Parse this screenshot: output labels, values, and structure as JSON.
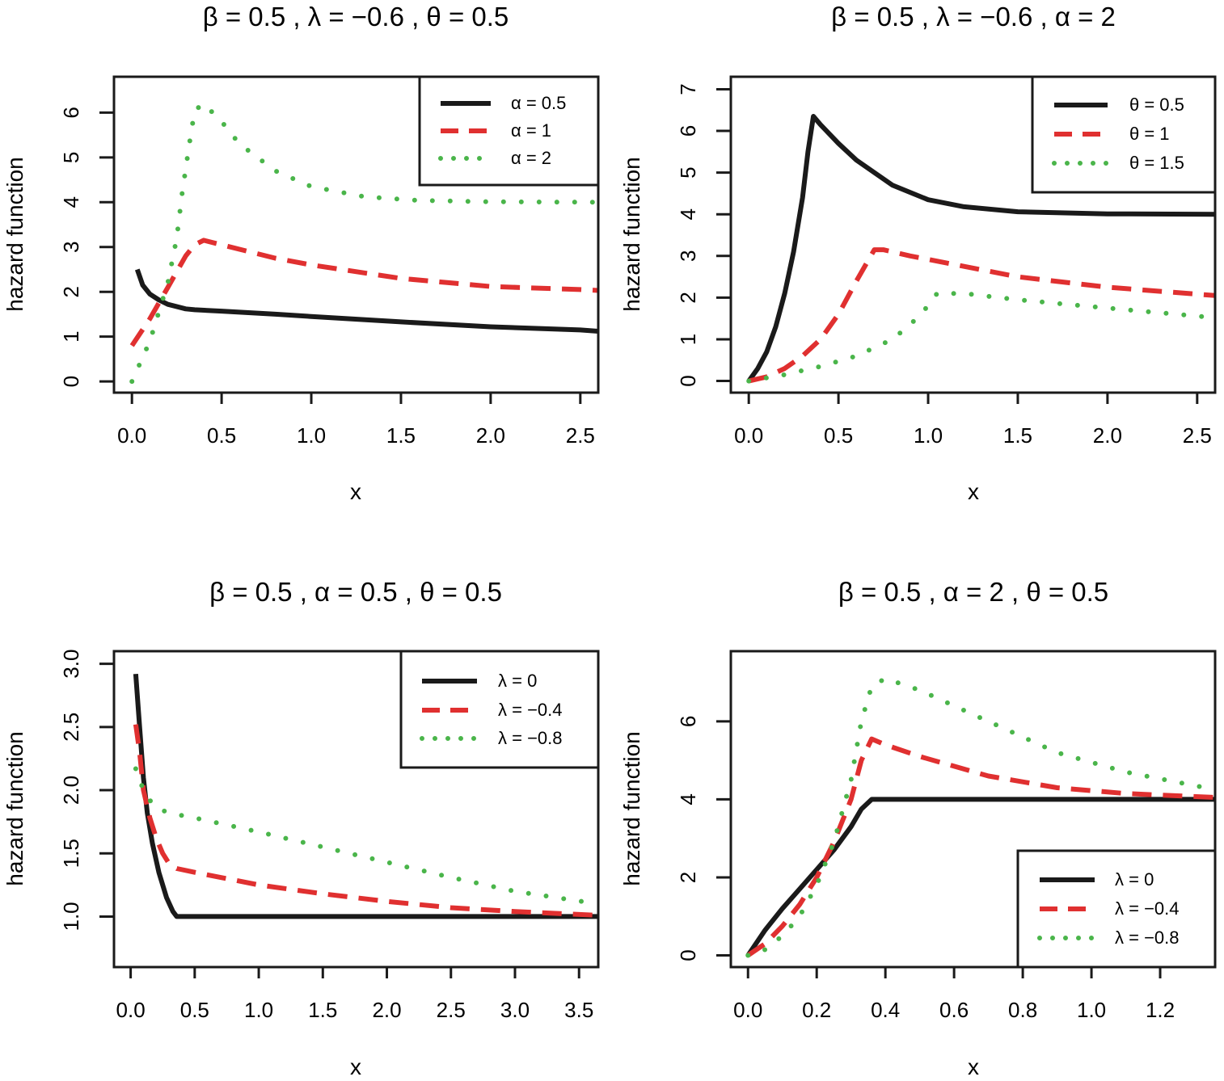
{
  "colors": {
    "black": "#1a1a1a",
    "red": "#e03030",
    "green": "#4ab54a"
  },
  "chart_data": [
    {
      "type": "line",
      "title": "β = 0.5 , λ = −0.6 , θ = 0.5",
      "xlabel": "x",
      "ylabel": "hazard function",
      "xlim": [
        -0.1,
        2.6
      ],
      "ylim": [
        -0.25,
        6.8
      ],
      "xticks": [
        0.0,
        0.5,
        1.0,
        1.5,
        2.0,
        2.5
      ],
      "xtick_labels": [
        "0.0",
        "0.5",
        "1.0",
        "1.5",
        "2.0",
        "2.5"
      ],
      "yticks": [
        0,
        1,
        2,
        3,
        4,
        5,
        6
      ],
      "ytick_labels": [
        "0",
        "1",
        "2",
        "3",
        "4",
        "5",
        "6"
      ],
      "legend_position": "top-right",
      "series": [
        {
          "name": "α = 0.5",
          "style": "solid",
          "color": "#1a1a1a",
          "x": [
            0.03,
            0.06,
            0.1,
            0.15,
            0.2,
            0.3,
            0.35,
            0.5,
            0.8,
            1.0,
            1.5,
            2.0,
            2.5,
            2.6
          ],
          "y": [
            2.5,
            2.15,
            1.95,
            1.82,
            1.72,
            1.62,
            1.6,
            1.57,
            1.5,
            1.45,
            1.33,
            1.22,
            1.15,
            1.12
          ]
        },
        {
          "name": "α = 1",
          "style": "dashed",
          "color": "#e03030",
          "x": [
            0.0,
            0.1,
            0.2,
            0.3,
            0.35,
            0.4,
            0.5,
            0.8,
            1.0,
            1.5,
            2.0,
            2.5,
            2.6
          ],
          "y": [
            0.8,
            1.4,
            2.1,
            2.8,
            3.05,
            3.15,
            3.05,
            2.75,
            2.6,
            2.3,
            2.12,
            2.05,
            2.03
          ]
        },
        {
          "name": "α = 2",
          "style": "dotted",
          "color": "#4ab54a",
          "x": [
            0.0,
            0.1,
            0.2,
            0.25,
            0.28,
            0.32,
            0.35,
            0.4,
            0.5,
            0.6,
            0.8,
            1.0,
            1.3,
            1.6,
            2.0,
            2.6
          ],
          "y": [
            0.0,
            0.9,
            2.2,
            3.2,
            4.2,
            5.3,
            6.05,
            6.2,
            5.8,
            5.3,
            4.7,
            4.35,
            4.12,
            4.04,
            4.01,
            4.0
          ]
        }
      ]
    },
    {
      "type": "line",
      "title": "β = 0.5 , λ = −0.6 , α = 2",
      "xlabel": "x",
      "ylabel": "hazard function",
      "xlim": [
        -0.1,
        2.6
      ],
      "ylim": [
        -0.28,
        7.3
      ],
      "xticks": [
        0.0,
        0.5,
        1.0,
        1.5,
        2.0,
        2.5
      ],
      "xtick_labels": [
        "0.0",
        "0.5",
        "1.0",
        "1.5",
        "2.0",
        "2.5"
      ],
      "yticks": [
        0,
        1,
        2,
        3,
        4,
        5,
        6,
        7
      ],
      "ytick_labels": [
        "0",
        "1",
        "2",
        "3",
        "4",
        "5",
        "6",
        "7"
      ],
      "legend_position": "top-right",
      "series": [
        {
          "name": "θ = 0.5",
          "style": "solid",
          "color": "#1a1a1a",
          "x": [
            0.0,
            0.05,
            0.1,
            0.15,
            0.2,
            0.25,
            0.3,
            0.33,
            0.36,
            0.4,
            0.5,
            0.6,
            0.8,
            1.0,
            1.2,
            1.5,
            2.0,
            2.6
          ],
          "y": [
            0.0,
            0.3,
            0.7,
            1.3,
            2.1,
            3.1,
            4.4,
            5.5,
            6.35,
            6.15,
            5.7,
            5.3,
            4.7,
            4.35,
            4.18,
            4.06,
            4.01,
            4.0
          ]
        },
        {
          "name": "θ = 1",
          "style": "dashed",
          "color": "#e03030",
          "x": [
            0.0,
            0.1,
            0.2,
            0.3,
            0.4,
            0.5,
            0.6,
            0.7,
            0.75,
            0.9,
            1.2,
            1.5,
            2.0,
            2.6
          ],
          "y": [
            0.0,
            0.1,
            0.3,
            0.6,
            1.0,
            1.6,
            2.4,
            3.15,
            3.15,
            3.0,
            2.75,
            2.5,
            2.25,
            2.05
          ]
        },
        {
          "name": "θ = 1.5",
          "style": "dotted",
          "color": "#4ab54a",
          "x": [
            0.0,
            0.2,
            0.4,
            0.6,
            0.8,
            0.9,
            1.0,
            1.05,
            1.2,
            1.5,
            2.0,
            2.6
          ],
          "y": [
            0.0,
            0.15,
            0.35,
            0.6,
            1.0,
            1.35,
            1.8,
            2.1,
            2.1,
            1.95,
            1.75,
            1.52
          ]
        }
      ]
    },
    {
      "type": "line",
      "title": "β = 0.5 , α = 0.5 , θ = 0.5",
      "xlabel": "x",
      "ylabel": "hazard function",
      "xlim": [
        -0.13,
        3.65
      ],
      "ylim": [
        0.6,
        3.1
      ],
      "xticks": [
        0.0,
        0.5,
        1.0,
        1.5,
        2.0,
        2.5,
        3.0,
        3.5
      ],
      "xtick_labels": [
        "0.0",
        "0.5",
        "1.0",
        "1.5",
        "2.0",
        "2.5",
        "3.0",
        "3.5"
      ],
      "yticks": [
        1.0,
        1.5,
        2.0,
        2.5,
        3.0
      ],
      "ytick_labels": [
        "1.0",
        "1.5",
        "2.0",
        "2.5",
        "3.0"
      ],
      "legend_position": "top-right",
      "series": [
        {
          "name": "λ = 0",
          "style": "solid",
          "color": "#1a1a1a",
          "x": [
            0.04,
            0.07,
            0.1,
            0.13,
            0.17,
            0.22,
            0.28,
            0.33,
            0.36,
            0.4,
            1.0,
            2.0,
            3.0,
            3.65
          ],
          "y": [
            2.92,
            2.5,
            2.1,
            1.82,
            1.58,
            1.35,
            1.15,
            1.04,
            1.0,
            1.0,
            1.0,
            1.0,
            1.0,
            1.0
          ]
        },
        {
          "name": "λ = −0.4",
          "style": "dashed",
          "color": "#e03030",
          "x": [
            0.04,
            0.07,
            0.1,
            0.15,
            0.2,
            0.25,
            0.3,
            0.36,
            0.5,
            1.0,
            1.5,
            2.0,
            2.5,
            3.0,
            3.65
          ],
          "y": [
            2.52,
            2.3,
            2.0,
            1.78,
            1.62,
            1.5,
            1.42,
            1.38,
            1.35,
            1.25,
            1.18,
            1.12,
            1.07,
            1.04,
            1.01
          ]
        },
        {
          "name": "λ = −0.8",
          "style": "dotted",
          "color": "#4ab54a",
          "x": [
            0.04,
            0.1,
            0.15,
            0.2,
            0.3,
            0.5,
            1.0,
            1.5,
            2.0,
            2.5,
            3.0,
            3.65
          ],
          "y": [
            2.17,
            2.0,
            1.92,
            1.86,
            1.82,
            1.78,
            1.67,
            1.55,
            1.43,
            1.31,
            1.2,
            1.1
          ]
        }
      ]
    },
    {
      "type": "line",
      "title": "β = 0.5 , α = 2 , θ = 0.5",
      "xlabel": "x",
      "ylabel": "hazard function",
      "xlim": [
        -0.05,
        1.36
      ],
      "ylim": [
        -0.3,
        7.8
      ],
      "xticks": [
        0.0,
        0.2,
        0.4,
        0.6,
        0.8,
        1.0,
        1.2
      ],
      "xtick_labels": [
        "0.0",
        "0.2",
        "0.4",
        "0.6",
        "0.8",
        "1.0",
        "1.2"
      ],
      "yticks": [
        0,
        2,
        4,
        6
      ],
      "ytick_labels": [
        "0",
        "2",
        "4",
        "6"
      ],
      "legend_position": "bottom-right",
      "series": [
        {
          "name": "λ = 0",
          "style": "solid",
          "color": "#1a1a1a",
          "x": [
            0.0,
            0.05,
            0.1,
            0.15,
            0.2,
            0.25,
            0.3,
            0.33,
            0.36,
            0.4,
            0.8,
            1.36
          ],
          "y": [
            0.0,
            0.65,
            1.2,
            1.7,
            2.2,
            2.7,
            3.3,
            3.75,
            4.0,
            4.0,
            4.0,
            4.0
          ]
        },
        {
          "name": "λ = −0.4",
          "style": "dashed",
          "color": "#e03030",
          "x": [
            0.0,
            0.05,
            0.1,
            0.15,
            0.2,
            0.25,
            0.3,
            0.33,
            0.36,
            0.4,
            0.5,
            0.7,
            0.9,
            1.1,
            1.36
          ],
          "y": [
            0.0,
            0.3,
            0.75,
            1.3,
            2.0,
            2.9,
            4.0,
            5.0,
            5.55,
            5.4,
            5.1,
            4.6,
            4.3,
            4.15,
            4.05
          ]
        },
        {
          "name": "λ = −0.8",
          "style": "dotted",
          "color": "#4ab54a",
          "x": [
            0.0,
            0.05,
            0.1,
            0.15,
            0.2,
            0.25,
            0.3,
            0.33,
            0.36,
            0.4,
            0.5,
            0.7,
            0.9,
            1.1,
            1.36
          ],
          "y": [
            0.0,
            0.15,
            0.5,
            1.0,
            1.8,
            2.9,
            4.5,
            6.0,
            6.9,
            7.1,
            6.8,
            6.0,
            5.2,
            4.7,
            4.25
          ]
        }
      ]
    }
  ]
}
